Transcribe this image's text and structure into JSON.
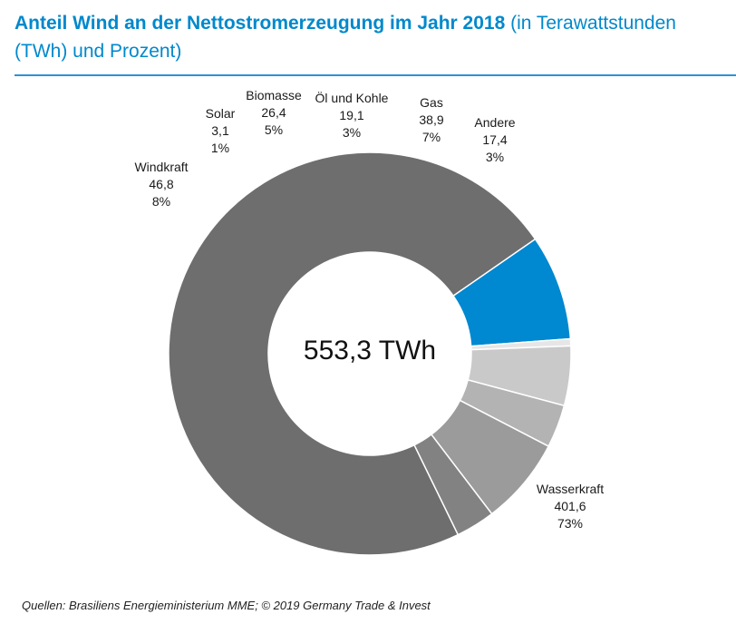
{
  "title": {
    "bold": "Anteil Wind an der Nettostromerzeugung im Jahr 2018",
    "normal": " (in Terawattstunden (TWh) und Prozent)"
  },
  "footer": "Quellen: Brasiliens Energieministerium MME; © 2019 Germany Trade & Invest",
  "chart_data": {
    "type": "pie",
    "variant": "donut",
    "center_label": "553,3 TWh",
    "total": 553.3,
    "slices": [
      {
        "name": "Wasserkraft",
        "value": 401.6,
        "value_label": "401,6",
        "percent_label": "73%",
        "color": "#6e6e6e"
      },
      {
        "name": "Windkraft",
        "value": 46.8,
        "value_label": "46,8",
        "percent_label": "8%",
        "color": "#0088d1"
      },
      {
        "name": "Solar",
        "value": 3.1,
        "value_label": "3,1",
        "percent_label": "1%",
        "color": "#e6e6e6"
      },
      {
        "name": "Biomasse",
        "value": 26.4,
        "value_label": "26,4",
        "percent_label": "5%",
        "color": "#c9c9c9"
      },
      {
        "name": "Öl und Kohle",
        "value": 19.1,
        "value_label": "19,1",
        "percent_label": "3%",
        "color": "#b3b3b3"
      },
      {
        "name": "Gas",
        "value": 38.9,
        "value_label": "38,9",
        "percent_label": "7%",
        "color": "#9b9b9b"
      },
      {
        "name": "Andere",
        "value": 17.4,
        "value_label": "17,4",
        "percent_label": "3%",
        "color": "#828282"
      }
    ]
  }
}
